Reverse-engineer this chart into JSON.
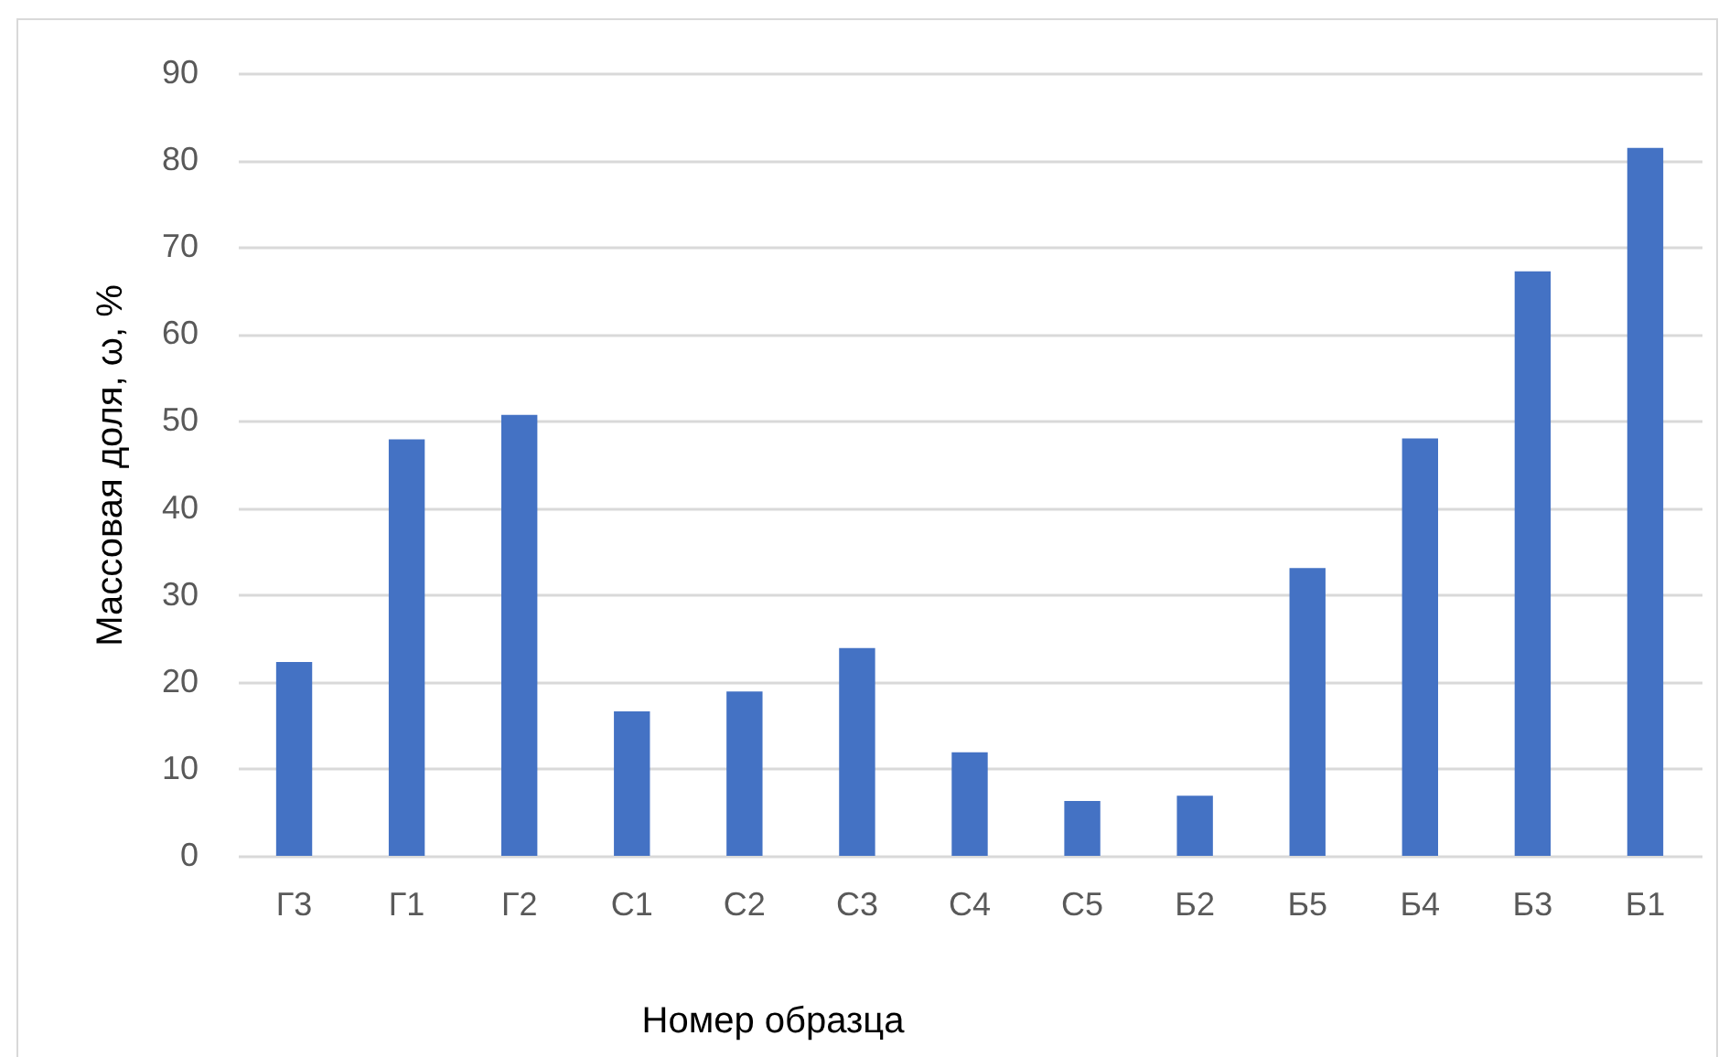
{
  "chart_data": {
    "type": "bar",
    "xlabel": "Номер образца",
    "ylabel": "Массовая доля, ω, %",
    "categories": [
      "Г3",
      "Г1",
      "Г2",
      "С1",
      "С2",
      "С3",
      "С4",
      "С5",
      "Б2",
      "Б5",
      "Б4",
      "Б3",
      "Б1"
    ],
    "values": [
      22.3,
      47.9,
      50.7,
      16.6,
      18.9,
      23.9,
      11.9,
      6.3,
      6.9,
      33.1,
      48.0,
      67.2,
      81.4
    ],
    "color": "#4472c4",
    "ylim": [
      0,
      90
    ],
    "yticks": [
      0,
      10,
      20,
      30,
      40,
      50,
      60,
      70,
      80,
      90
    ],
    "grid": "y"
  }
}
